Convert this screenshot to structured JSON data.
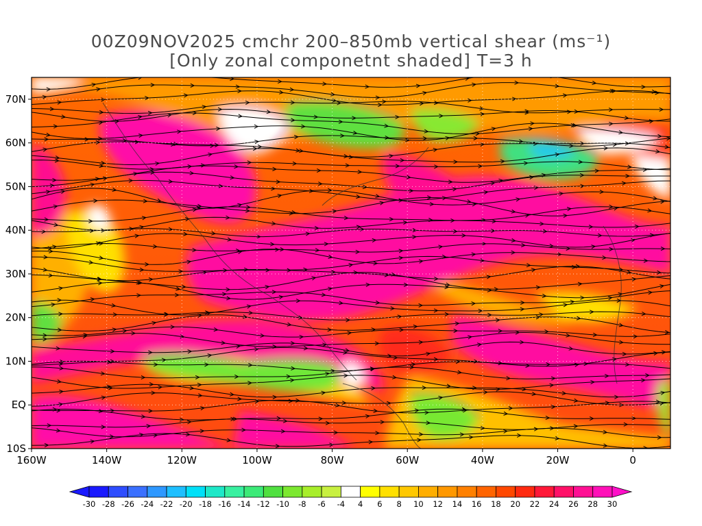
{
  "title": {
    "line1": "00Z09NOV2025 cmchr 200–850mb vertical shear (ms⁻¹)",
    "line2": "[Only zonal componetnt shaded] T=3 h"
  },
  "map": {
    "lon_range": [
      -160,
      10
    ],
    "lat_range": [
      -10,
      75
    ],
    "lat_labels": [
      {
        "value": 70,
        "text": "70N"
      },
      {
        "value": 60,
        "text": "60N"
      },
      {
        "value": 50,
        "text": "50N"
      },
      {
        "value": 40,
        "text": "40N"
      },
      {
        "value": 30,
        "text": "30N"
      },
      {
        "value": 20,
        "text": "20N"
      },
      {
        "value": 10,
        "text": "10N"
      },
      {
        "value": 0,
        "text": "EQ"
      },
      {
        "value": -10,
        "text": "10S"
      }
    ],
    "lon_labels": [
      {
        "value": -160,
        "text": "160W"
      },
      {
        "value": -140,
        "text": "140W"
      },
      {
        "value": -120,
        "text": "120W"
      },
      {
        "value": -100,
        "text": "100W"
      },
      {
        "value": -80,
        "text": "80W"
      },
      {
        "value": -60,
        "text": "60W"
      },
      {
        "value": -40,
        "text": "40W"
      },
      {
        "value": -20,
        "text": "20W"
      },
      {
        "value": 0,
        "text": "0"
      }
    ],
    "shading_variable": "zonal component of 200–850mb vertical shear",
    "overlay": "streamlines"
  },
  "colorbar": {
    "labels": [
      "-30",
      "-28",
      "-26",
      "-24",
      "-22",
      "-20",
      "-18",
      "-16",
      "-14",
      "-12",
      "-10",
      "-8",
      "-6",
      "-4",
      "4",
      "6",
      "8",
      "10",
      "12",
      "14",
      "16",
      "18",
      "20",
      "22",
      "24",
      "26",
      "28",
      "30"
    ],
    "colors": [
      "#1a1aff",
      "#2e4dff",
      "#3a70ff",
      "#2e98ff",
      "#1ebfff",
      "#00e0f8",
      "#1ee8c8",
      "#38f0a0",
      "#3cea78",
      "#50e040",
      "#7ce830",
      "#a8ee2a",
      "#c8f040",
      "#ffffff",
      "#ffff00",
      "#ffe000",
      "#ffc800",
      "#ffae00",
      "#ff9800",
      "#ff8000",
      "#ff6400",
      "#ff4800",
      "#ff2a10",
      "#ff1838",
      "#ff1068",
      "#ff1094",
      "#ff10b8"
    ],
    "under_color": "#1a1aff",
    "over_color": "#ff10c8"
  }
}
